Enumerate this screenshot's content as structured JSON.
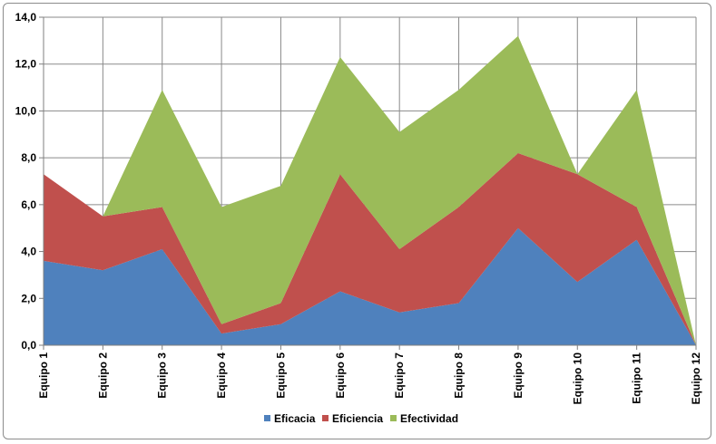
{
  "chart_data": {
    "type": "area",
    "stacked": true,
    "categories": [
      "Equipo 1",
      "Equipo 2",
      "Equipo 3",
      "Equipo 4",
      "Equipo 5",
      "Equipo 6",
      "Equipo 7",
      "Equipo 8",
      "Equipo 9",
      "Equipo 10",
      "Equipo 11",
      "Equipo 12"
    ],
    "series": [
      {
        "name": "Eficacia",
        "color": "#4f81bd",
        "values": [
          3.6,
          3.2,
          4.1,
          0.5,
          0.9,
          2.3,
          1.4,
          1.8,
          5.0,
          2.7,
          4.5,
          0.0
        ]
      },
      {
        "name": "Eficiencia",
        "color": "#c0504d",
        "values": [
          3.7,
          2.3,
          1.8,
          0.4,
          0.9,
          5.0,
          2.7,
          4.1,
          3.2,
          4.6,
          1.4,
          0.0
        ]
      },
      {
        "name": "Efectividad",
        "color": "#9bbb59",
        "values": [
          0.0,
          0.0,
          5.0,
          5.0,
          5.0,
          5.0,
          5.0,
          5.0,
          5.0,
          0.0,
          5.0,
          0.0
        ]
      }
    ],
    "ylim": [
      0,
      14
    ],
    "yticks": [
      "0,0",
      "2,0",
      "4,0",
      "6,0",
      "8,0",
      "10,0",
      "12,0",
      "14,0"
    ],
    "grid": true,
    "legend_position": "bottom",
    "title": "",
    "xlabel": "",
    "ylabel": ""
  }
}
